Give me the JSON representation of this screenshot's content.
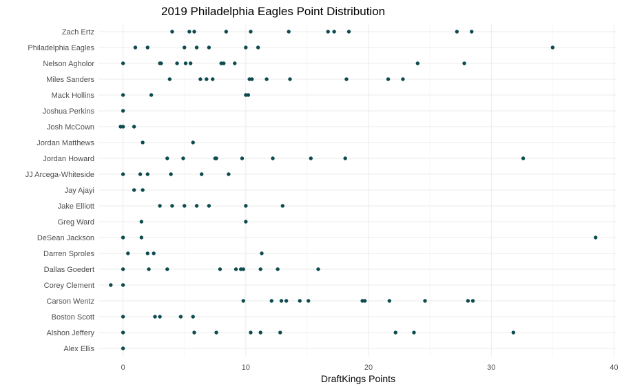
{
  "chart_data": {
    "type": "scatter",
    "title": "2019 Philadelphia Eagles Point Distribution",
    "xlabel": "DraftKings Points",
    "ylabel": "",
    "xlim": [
      -2.0,
      40.2
    ],
    "xticks": [
      0,
      10,
      20,
      30,
      40
    ],
    "grid": true,
    "point_color": "#0d4b4f",
    "categories": [
      "Zach Ertz",
      "Philadelphia Eagles",
      "Nelson Agholor",
      "Miles Sanders",
      "Mack Hollins",
      "Joshua Perkins",
      "Josh McCown",
      "Jordan Matthews",
      "Jordan Howard",
      "JJ Arcega-Whiteside",
      "Jay Ajayi",
      "Jake Elliott",
      "Greg Ward",
      "DeSean Jackson",
      "Darren Sproles",
      "Dallas Goedert",
      "Corey Clement",
      "Carson Wentz",
      "Boston Scott",
      "Alshon Jeffery",
      "Alex Ellis"
    ],
    "series": [
      {
        "category": "Zach Ertz",
        "values": [
          4.0,
          5.4,
          5.8,
          8.4,
          10.4,
          13.5,
          16.7,
          17.2,
          18.4,
          27.2,
          28.4
        ]
      },
      {
        "category": "Philadelphia Eagles",
        "values": [
          1.0,
          2.0,
          5.0,
          6.0,
          7.0,
          10.0,
          11.0,
          35.0
        ]
      },
      {
        "category": "Nelson Agholor",
        "values": [
          0.0,
          3.0,
          3.1,
          4.4,
          5.1,
          5.5,
          8.0,
          8.2,
          9.1,
          24.0,
          27.8
        ]
      },
      {
        "category": "Miles Sanders",
        "values": [
          3.8,
          6.3,
          6.8,
          7.3,
          10.3,
          10.5,
          11.7,
          13.6,
          18.2,
          21.6,
          22.8
        ]
      },
      {
        "category": "Mack Hollins",
        "values": [
          0.0,
          2.3,
          10.0,
          10.2
        ]
      },
      {
        "category": "Joshua Perkins",
        "values": [
          0.0
        ]
      },
      {
        "category": "Josh McCown",
        "values": [
          -0.2,
          0.0,
          0.9
        ]
      },
      {
        "category": "Jordan Matthews",
        "values": [
          1.6,
          5.7
        ]
      },
      {
        "category": "Jordan Howard",
        "values": [
          3.6,
          4.9,
          7.5,
          7.6,
          9.7,
          12.2,
          15.3,
          18.1,
          32.6
        ]
      },
      {
        "category": "JJ Arcega-Whiteside",
        "values": [
          0.0,
          1.4,
          2.0,
          3.9,
          6.4,
          8.6
        ]
      },
      {
        "category": "Jay Ajayi",
        "values": [
          0.9,
          1.6
        ]
      },
      {
        "category": "Jake Elliott",
        "values": [
          3.0,
          4.0,
          5.0,
          6.0,
          7.0,
          10.0,
          13.0
        ]
      },
      {
        "category": "Greg Ward",
        "values": [
          1.5,
          10.0
        ]
      },
      {
        "category": "DeSean Jackson",
        "values": [
          0.0,
          1.5,
          38.5
        ]
      },
      {
        "category": "Darren Sproles",
        "values": [
          0.4,
          2.0,
          2.5,
          11.3
        ]
      },
      {
        "category": "Dallas Goedert",
        "values": [
          0.0,
          2.1,
          3.6,
          7.9,
          9.2,
          9.6,
          9.8,
          11.2,
          12.6,
          15.9
        ]
      },
      {
        "category": "Corey Clement",
        "values": [
          -1.0,
          0.0
        ]
      },
      {
        "category": "Carson Wentz",
        "values": [
          9.8,
          12.1,
          12.9,
          13.3,
          14.4,
          15.1,
          19.5,
          19.7,
          21.7,
          24.6,
          28.1,
          28.5
        ]
      },
      {
        "category": "Boston Scott",
        "values": [
          0.0,
          2.6,
          3.0,
          4.7,
          5.7
        ]
      },
      {
        "category": "Alshon Jeffery",
        "values": [
          0.0,
          5.8,
          7.6,
          10.4,
          11.2,
          12.8,
          22.2,
          23.7,
          31.8
        ]
      },
      {
        "category": "Alex Ellis",
        "values": [
          0.0
        ]
      }
    ]
  }
}
